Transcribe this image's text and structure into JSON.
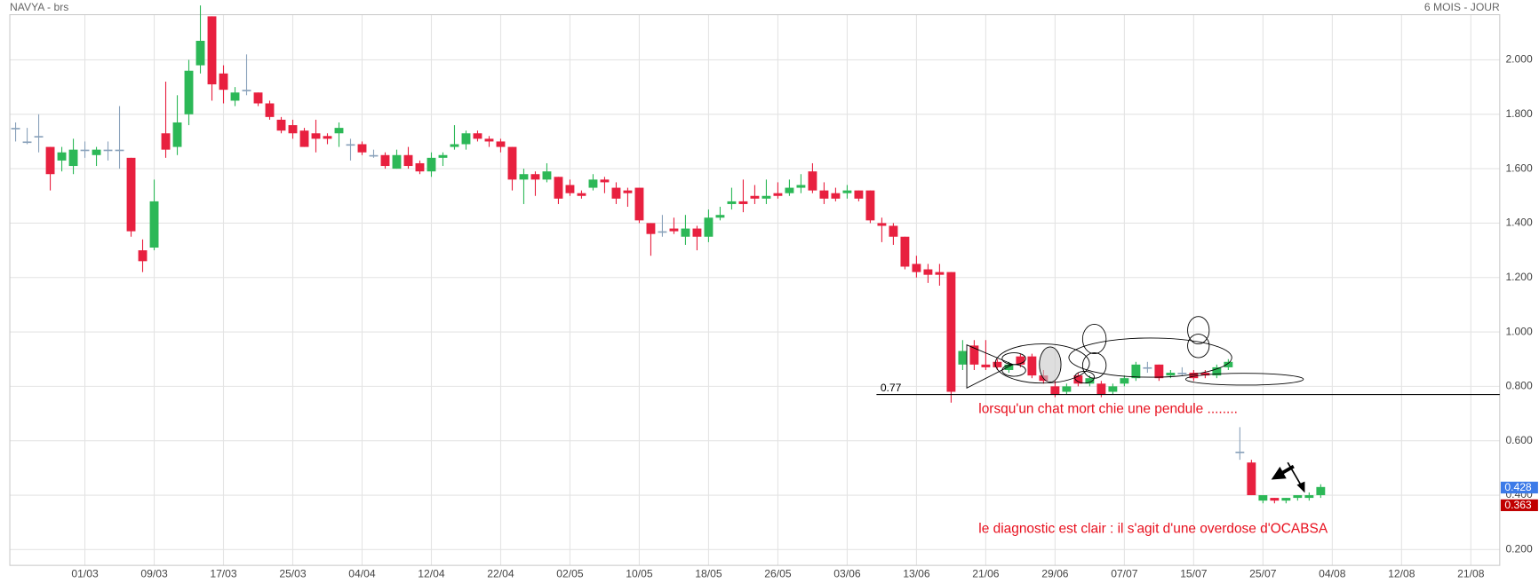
{
  "chart_data": {
    "type": "candlestick",
    "title": "NAVYA - brs",
    "period": "6 MOIS - JOUR",
    "categories": [
      null,
      null,
      null,
      null,
      null,
      null,
      "01/03",
      null,
      null,
      null,
      null,
      null,
      "09/03",
      null,
      null,
      null,
      null,
      null,
      "17/03",
      null,
      null,
      null,
      null,
      null,
      "25/03",
      null,
      null,
      null,
      null,
      null,
      "04/04",
      null,
      null,
      null,
      null,
      null,
      "12/04",
      null,
      null,
      null,
      null,
      null,
      "22/04",
      null,
      null,
      null,
      null,
      null,
      "02/05",
      null,
      null,
      null,
      null,
      null,
      "10/05",
      null,
      null,
      null,
      null,
      null,
      "18/05",
      null,
      null,
      null,
      null,
      null,
      "26/05",
      null,
      null,
      null,
      null,
      null,
      "03/06",
      null,
      null,
      null,
      null,
      null,
      "13/06",
      null,
      null,
      null,
      null,
      null,
      "21/06",
      null,
      null,
      null,
      null,
      null,
      "29/06",
      null,
      null,
      null,
      null,
      null,
      "07/07",
      null,
      null,
      null,
      null,
      null,
      "15/07",
      null,
      null,
      null,
      null,
      null,
      "25/07",
      null,
      null,
      null,
      null,
      null,
      "04/08",
      null,
      null,
      null,
      null,
      null,
      "12/08",
      null,
      null,
      null,
      null,
      null,
      "21/08",
      null,
      null
    ],
    "open": [
      1.75,
      1.7,
      1.72,
      1.68,
      1.63,
      1.61,
      1.67,
      1.65,
      1.67,
      1.67,
      1.64,
      1.3,
      1.31,
      1.73,
      1.68,
      1.8,
      1.98,
      2.16,
      1.95,
      1.85,
      1.89,
      1.88,
      1.84,
      1.78,
      1.76,
      1.74,
      1.73,
      1.72,
      1.73,
      1.69,
      1.69,
      1.65,
      1.65,
      1.6,
      1.65,
      1.62,
      1.59,
      1.64,
      1.68,
      1.69,
      1.73,
      1.71,
      1.7,
      1.68,
      1.56,
      1.58,
      1.56,
      1.57,
      1.54,
      1.51,
      1.53,
      1.56,
      1.53,
      1.52,
      1.53,
      1.4,
      1.37,
      1.38,
      1.35,
      1.38,
      1.35,
      1.42,
      1.47,
      1.48,
      1.5,
      1.49,
      1.51,
      1.51,
      1.53,
      1.59,
      1.52,
      1.51,
      1.51,
      1.52,
      1.52,
      1.4,
      1.39,
      1.35,
      1.25,
      1.23,
      1.22,
      1.22,
      0.88,
      0.95,
      0.88,
      0.89,
      0.86,
      0.91,
      0.91,
      0.84,
      0.8,
      0.78,
      0.84,
      0.81,
      0.81,
      0.78,
      0.81,
      0.83,
      0.87,
      0.88,
      0.84,
      0.85,
      0.85,
      0.85,
      0.84,
      0.87,
      0.56,
      0.52,
      0.38,
      0.39,
      0.38,
      0.39,
      0.39,
      0.4,
      null,
      null,
      null,
      null,
      null,
      null,
      null,
      null,
      null,
      null,
      null,
      null,
      null,
      null,
      null
    ],
    "high": [
      1.77,
      1.75,
      1.8,
      1.68,
      1.68,
      1.71,
      1.7,
      1.68,
      1.7,
      1.83,
      1.64,
      1.34,
      1.56,
      1.92,
      1.87,
      2.0,
      2.2,
      2.16,
      1.98,
      1.9,
      2.02,
      1.88,
      1.85,
      1.79,
      1.78,
      1.75,
      1.78,
      1.73,
      1.77,
      1.71,
      1.7,
      1.67,
      1.66,
      1.67,
      1.68,
      1.63,
      1.66,
      1.66,
      1.76,
      1.74,
      1.74,
      1.72,
      1.71,
      1.68,
      1.6,
      1.59,
      1.62,
      1.57,
      1.56,
      1.52,
      1.58,
      1.57,
      1.55,
      1.53,
      1.53,
      1.4,
      1.43,
      1.42,
      1.43,
      1.39,
      1.45,
      1.46,
      1.53,
      1.56,
      1.54,
      1.56,
      1.55,
      1.56,
      1.58,
      1.62,
      1.55,
      1.53,
      1.54,
      1.52,
      1.52,
      1.42,
      1.4,
      1.35,
      1.28,
      1.25,
      1.25,
      1.22,
      0.97,
      0.97,
      0.97,
      0.9,
      0.89,
      0.92,
      0.92,
      0.86,
      0.82,
      0.81,
      0.85,
      0.84,
      0.82,
      0.81,
      0.84,
      0.89,
      0.89,
      0.88,
      0.86,
      0.87,
      0.86,
      0.86,
      0.88,
      0.9,
      0.65,
      0.53,
      0.4,
      0.39,
      0.39,
      0.4,
      0.41,
      0.44,
      null,
      null,
      null,
      null,
      null,
      null,
      null,
      null,
      null,
      null,
      null,
      null,
      null,
      null,
      null
    ],
    "low": [
      1.7,
      1.69,
      1.66,
      1.52,
      1.59,
      1.58,
      1.64,
      1.61,
      1.63,
      1.6,
      1.35,
      1.22,
      1.3,
      1.64,
      1.65,
      1.76,
      1.95,
      1.85,
      1.84,
      1.83,
      1.87,
      1.83,
      1.78,
      1.73,
      1.71,
      1.68,
      1.66,
      1.69,
      1.68,
      1.63,
      1.65,
      1.64,
      1.6,
      1.6,
      1.6,
      1.58,
      1.57,
      1.61,
      1.67,
      1.67,
      1.7,
      1.68,
      1.66,
      1.52,
      1.47,
      1.5,
      1.55,
      1.47,
      1.5,
      1.49,
      1.52,
      1.51,
      1.47,
      1.46,
      1.4,
      1.28,
      1.35,
      1.36,
      1.32,
      1.3,
      1.33,
      1.41,
      1.45,
      1.44,
      1.47,
      1.47,
      1.49,
      1.5,
      1.51,
      1.51,
      1.47,
      1.48,
      1.49,
      1.48,
      1.4,
      1.33,
      1.32,
      1.23,
      1.2,
      1.18,
      1.17,
      0.74,
      0.86,
      0.86,
      0.86,
      0.86,
      0.85,
      0.87,
      0.83,
      0.81,
      0.76,
      0.77,
      0.8,
      0.8,
      0.76,
      0.77,
      0.8,
      0.82,
      0.85,
      0.82,
      0.83,
      0.84,
      0.82,
      0.83,
      0.83,
      0.86,
      0.53,
      0.4,
      0.37,
      0.37,
      0.37,
      0.38,
      0.38,
      0.39,
      null,
      null,
      null,
      null,
      null,
      null,
      null,
      null,
      null,
      null,
      null,
      null,
      null,
      null,
      null
    ],
    "close": [
      1.75,
      1.7,
      1.72,
      1.58,
      1.66,
      1.67,
      1.67,
      1.67,
      1.67,
      1.67,
      1.37,
      1.26,
      1.48,
      1.67,
      1.77,
      1.96,
      2.07,
      1.91,
      1.89,
      1.88,
      1.89,
      1.84,
      1.79,
      1.74,
      1.73,
      1.68,
      1.71,
      1.71,
      1.75,
      1.69,
      1.66,
      1.65,
      1.61,
      1.65,
      1.61,
      1.59,
      1.64,
      1.65,
      1.69,
      1.73,
      1.71,
      1.7,
      1.68,
      1.56,
      1.58,
      1.56,
      1.59,
      1.49,
      1.51,
      1.5,
      1.56,
      1.55,
      1.49,
      1.51,
      1.41,
      1.36,
      1.37,
      1.37,
      1.38,
      1.35,
      1.42,
      1.43,
      1.48,
      1.47,
      1.49,
      1.5,
      1.5,
      1.53,
      1.54,
      1.52,
      1.49,
      1.49,
      1.52,
      1.49,
      1.41,
      1.39,
      1.35,
      1.24,
      1.22,
      1.21,
      1.21,
      0.78,
      0.93,
      0.88,
      0.87,
      0.87,
      0.88,
      0.88,
      0.84,
      0.82,
      0.77,
      0.8,
      0.81,
      0.83,
      0.77,
      0.8,
      0.83,
      0.88,
      0.87,
      0.83,
      0.85,
      0.85,
      0.83,
      0.84,
      0.87,
      0.89,
      0.56,
      0.4,
      0.4,
      0.38,
      0.39,
      0.4,
      0.4,
      0.43,
      null,
      null,
      null,
      null,
      null,
      null,
      null,
      null,
      null,
      null,
      null,
      null,
      null,
      null,
      null
    ],
    "up_color": "#2cb857",
    "down_color": "#e8203f",
    "doji_color": "#8aa2bb",
    "ylim": [
      0.142,
      2.166
    ],
    "yticks": [
      {
        "value": 0.2,
        "label": "0.200"
      },
      {
        "value": 0.4,
        "label": "0.400"
      },
      {
        "value": 0.6,
        "label": "0.600"
      },
      {
        "value": 0.8,
        "label": "0.800"
      },
      {
        "value": 1.0,
        "label": "1.000"
      },
      {
        "value": 1.2,
        "label": "1.200"
      },
      {
        "value": 1.4,
        "label": "1.400"
      },
      {
        "value": 1.6,
        "label": "1.600"
      },
      {
        "value": 1.8,
        "label": "1.800"
      },
      {
        "value": 2.0,
        "label": "2.000"
      }
    ],
    "grid": true,
    "reference_line": {
      "value": 0.77,
      "color": "#000000"
    },
    "price_labels": [
      {
        "value": 0.428,
        "color": "#3d7be8"
      },
      {
        "value": 0.363,
        "color": "#c00000"
      }
    ],
    "annotations": [
      {
        "text": "lorsqu'un chat mort chie une pendule ........",
        "color": "#e8101e"
      },
      {
        "text": "le diagnostic est clair : il s'agit d'une overdose d'OCABSA",
        "color": "#e8101e"
      }
    ]
  }
}
